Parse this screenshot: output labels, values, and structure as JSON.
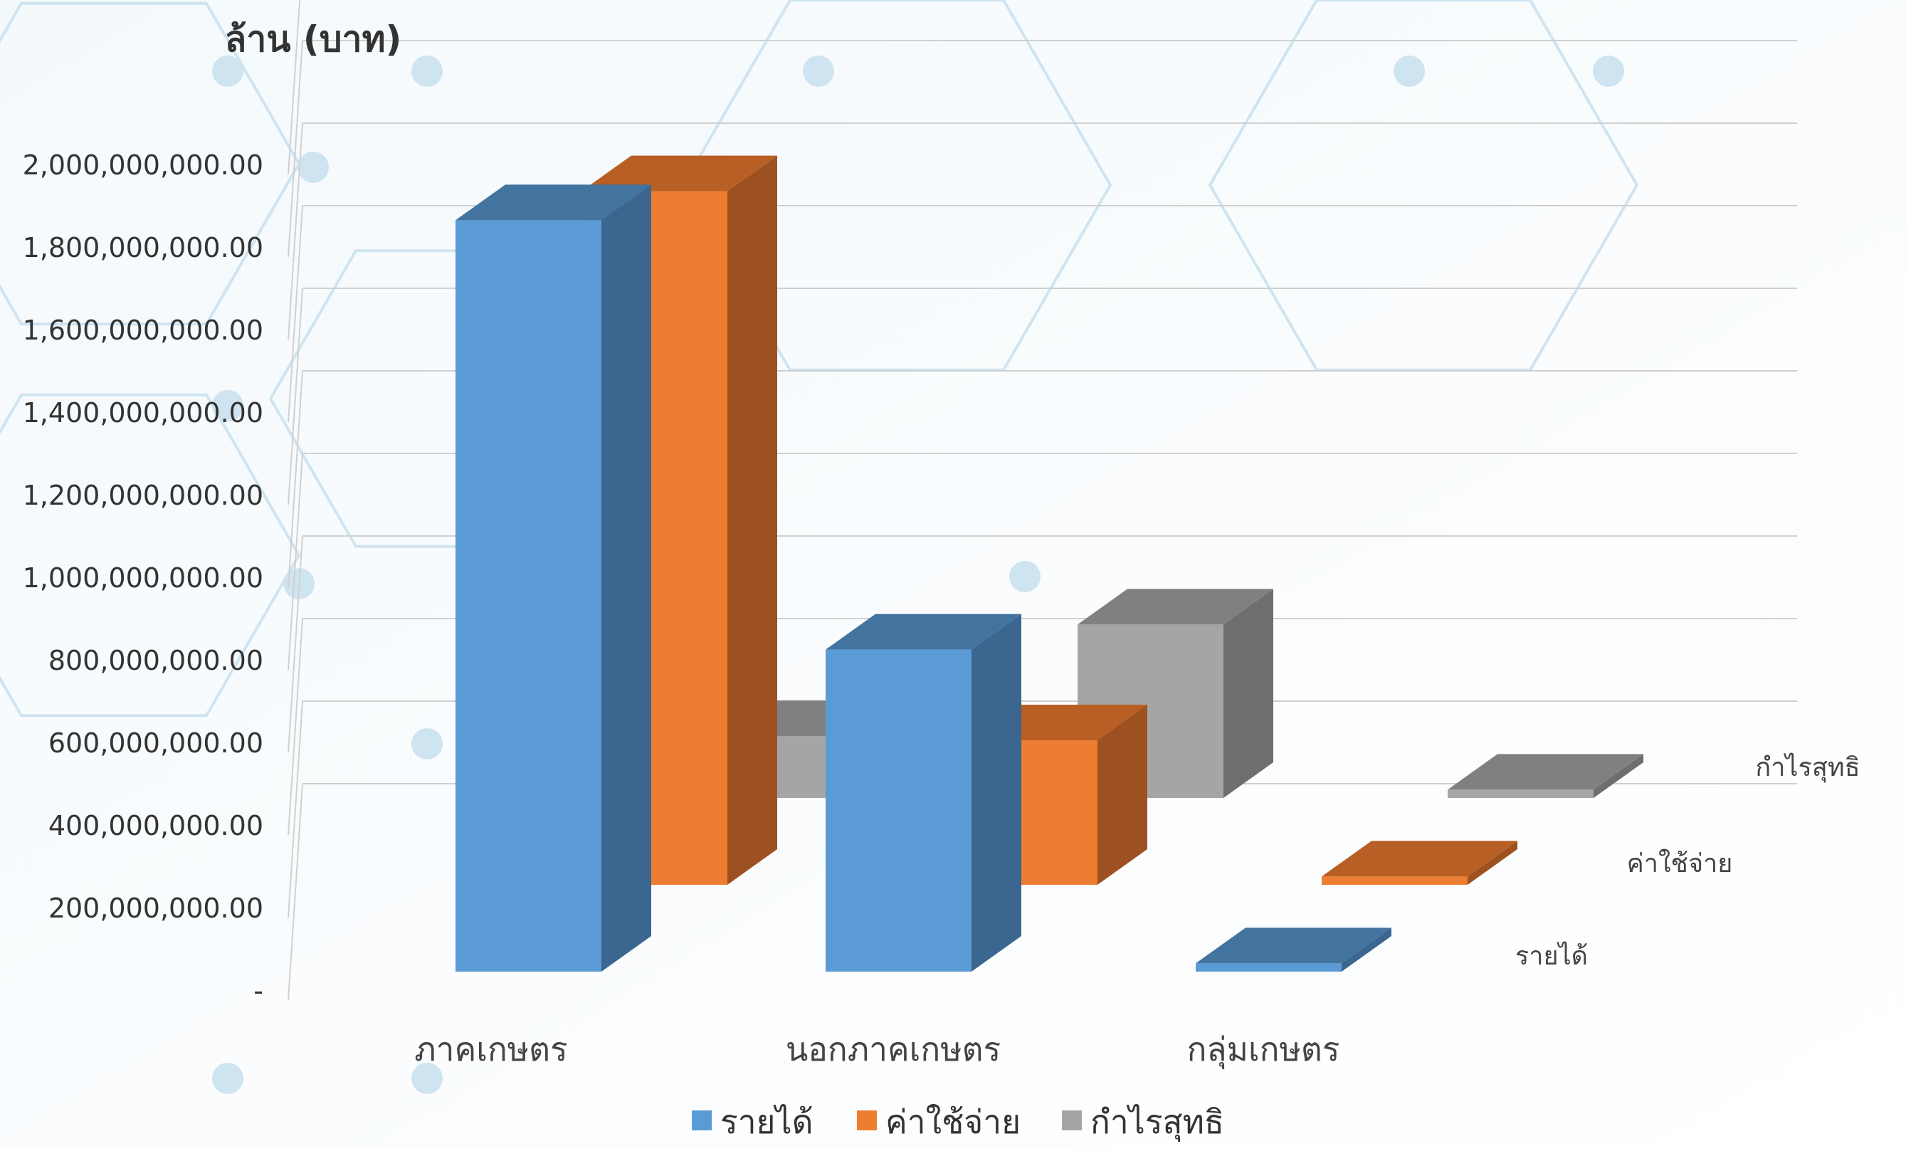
{
  "chart_data": {
    "type": "bar",
    "ylabel": "ล้าน (บาท)",
    "categories": [
      "ภาคเกษตร",
      "นอกภาคเกษตร",
      "กลุ่มเกษตร"
    ],
    "series": [
      {
        "name": "รายได้",
        "values": [
          1820000000,
          780000000,
          20000000
        ]
      },
      {
        "name": "ค่าใช้จ่าย",
        "values": [
          1680000000,
          350000000,
          20000000
        ]
      },
      {
        "name": "กำไรสุทธิ",
        "values": [
          150000000,
          420000000,
          20000000
        ]
      }
    ],
    "yticks": [
      "-",
      "200,000,000.00",
      "400,000,000.00",
      "600,000,000.00",
      "800,000,000.00",
      "1,000,000,000.00",
      "1,200,000,000.00",
      "1,400,000,000.00",
      "1,600,000,000.00",
      "1,800,000,000.00",
      "2,000,000,000.00"
    ],
    "ylim": [
      0,
      2000000000
    ],
    "grid": true,
    "legend": "bottom",
    "colors": {
      "series": [
        "#5b9bd5",
        "#ed7d31",
        "#a5a5a5"
      ],
      "series_side": [
        "#3a6690",
        "#9e5120",
        "#6e6e6e"
      ],
      "series_top": [
        "#43739f",
        "#b75f24",
        "#808080"
      ],
      "background_hex": "#d4e8f4"
    }
  }
}
